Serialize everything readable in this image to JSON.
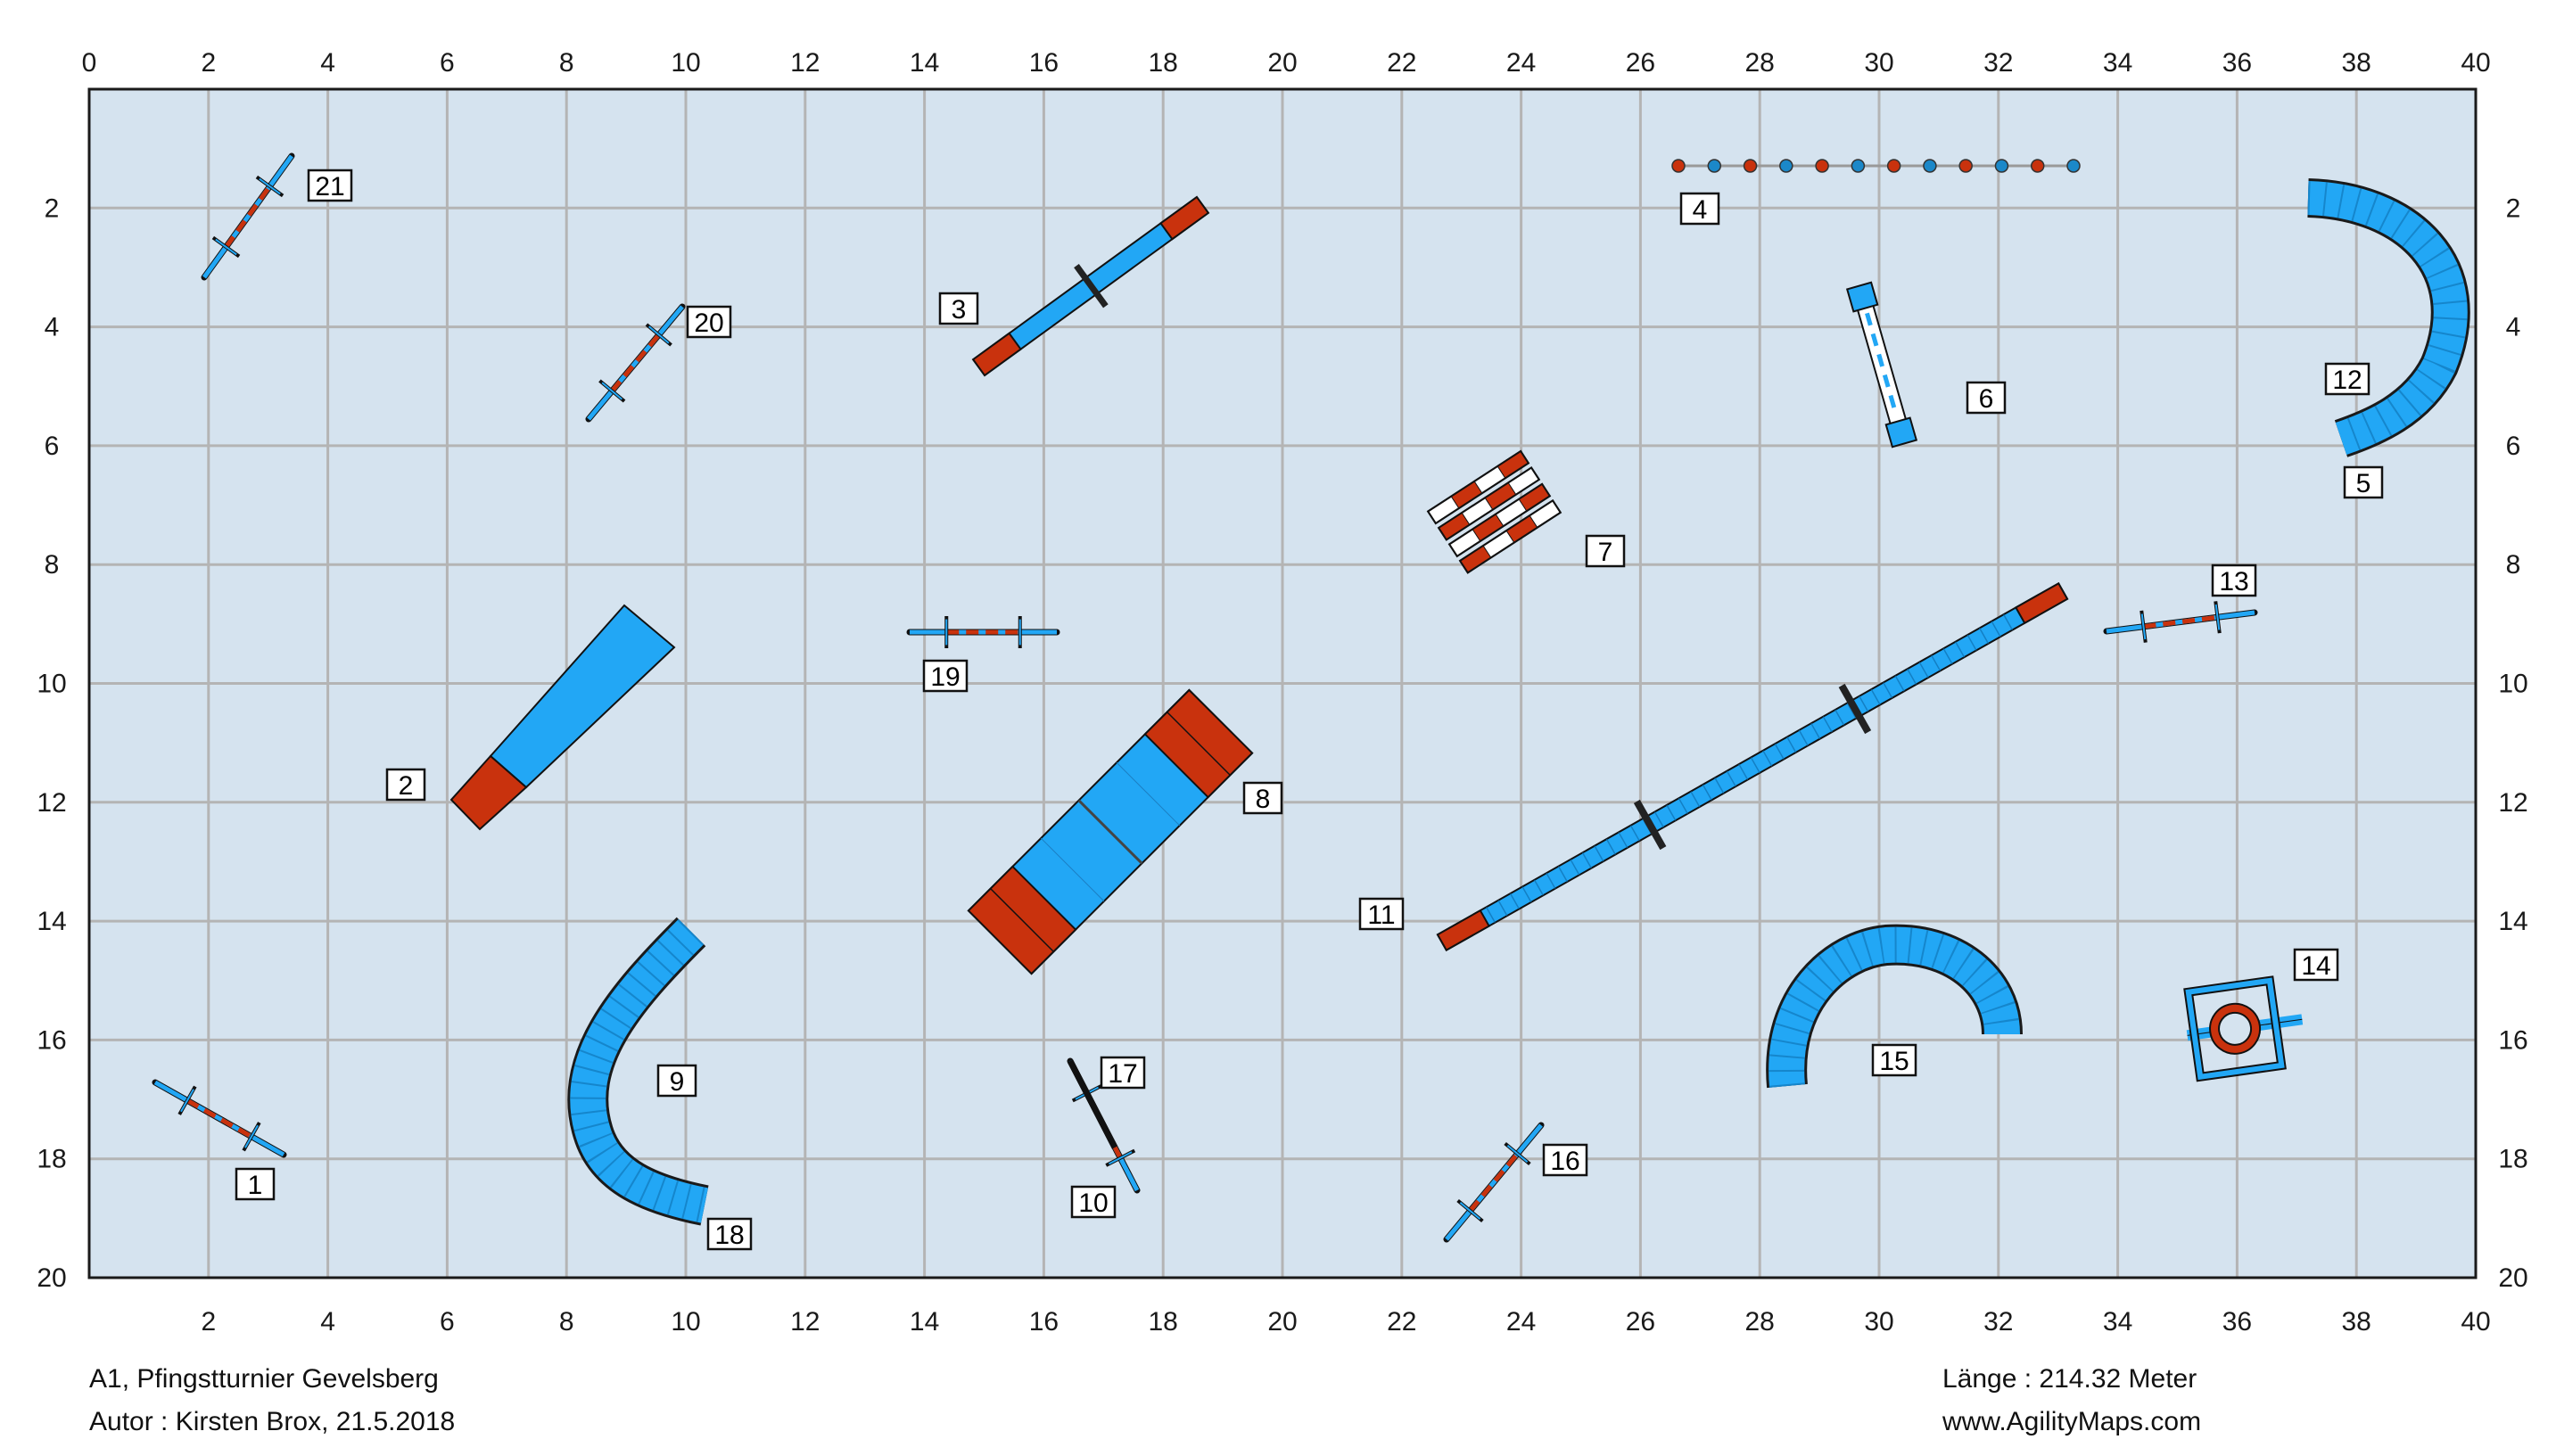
{
  "course": {
    "title": "A1, Pfingstturnier Gevelsberg",
    "author": "Autor : Kirsten Brox, 21.5.2018",
    "length": "Länge : 214.32 Meter",
    "website": "www.AgilityMaps.com"
  },
  "axes": {
    "top_ticks": [
      "0",
      "2",
      "4",
      "6",
      "8",
      "10",
      "12",
      "14",
      "16",
      "18",
      "20",
      "22",
      "24",
      "26",
      "28",
      "30",
      "32",
      "34",
      "36",
      "38",
      "40"
    ],
    "bottom_ticks": [
      "2",
      "4",
      "6",
      "8",
      "10",
      "12",
      "14",
      "16",
      "18",
      "20",
      "22",
      "24",
      "26",
      "28",
      "30",
      "32",
      "34",
      "36",
      "38",
      "40"
    ],
    "left_ticks": [
      "2",
      "4",
      "6",
      "8",
      "10",
      "12",
      "14",
      "16",
      "18",
      "20"
    ],
    "right_ticks": [
      "2",
      "4",
      "6",
      "8",
      "10",
      "12",
      "14",
      "16",
      "18",
      "20"
    ],
    "grid": true,
    "field_width": 40,
    "field_height": 20
  },
  "colors": {
    "field": "#d5e3ef",
    "grid": "#b4b4b4",
    "blue": "#22a7f5",
    "red": "#c9320d",
    "outline": "#1a1a1a"
  },
  "obstacles": [
    {
      "number": "1",
      "kind": "hurdle"
    },
    {
      "number": "2",
      "kind": "long-jump"
    },
    {
      "number": "3",
      "kind": "seesaw"
    },
    {
      "number": "4",
      "kind": "weave-poles"
    },
    {
      "number": "5",
      "kind": "tunnel"
    },
    {
      "number": "6",
      "kind": "table"
    },
    {
      "number": "7",
      "kind": "wall"
    },
    {
      "number": "8",
      "kind": "a-frame"
    },
    {
      "number": "9",
      "kind": "tunnel"
    },
    {
      "number": "10",
      "kind": "hurdle"
    },
    {
      "number": "11",
      "kind": "dog-walk"
    },
    {
      "number": "12",
      "kind": "tunnel"
    },
    {
      "number": "13",
      "kind": "hurdle"
    },
    {
      "number": "14",
      "kind": "tyre"
    },
    {
      "number": "15",
      "kind": "tunnel"
    },
    {
      "number": "16",
      "kind": "hurdle"
    },
    {
      "number": "17",
      "kind": "hurdle"
    },
    {
      "number": "18",
      "kind": "tunnel"
    },
    {
      "number": "19",
      "kind": "hurdle"
    },
    {
      "number": "20",
      "kind": "hurdle"
    },
    {
      "number": "21",
      "kind": "hurdle"
    }
  ]
}
